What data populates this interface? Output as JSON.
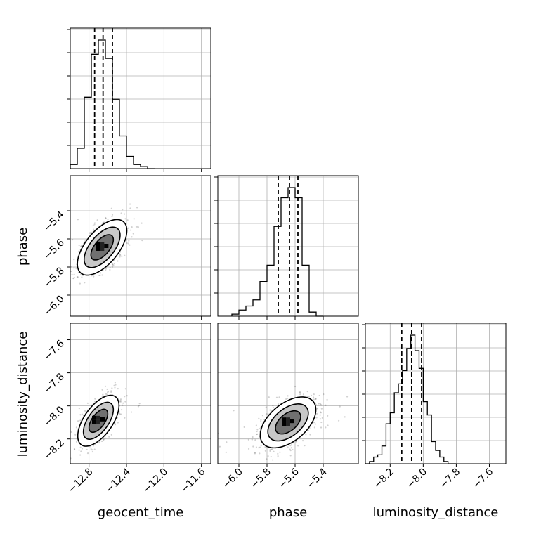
{
  "chart_data": {
    "type": "corner",
    "parameters": [
      "geocent_time",
      "phase",
      "luminosity_distance"
    ],
    "axis_labels": {
      "geocent_time": "geocent_time",
      "phase": "phase",
      "luminosity_distance": "luminosity_distance"
    },
    "ranges": {
      "geocent_time": [
        -13.0,
        -11.5
      ],
      "phase": [
        -6.15,
        -5.15
      ],
      "luminosity_distance": [
        -8.35,
        -7.5
      ]
    },
    "ticks": {
      "geocent_time": [
        {
          "v": -12.8,
          "label": "−12.8"
        },
        {
          "v": -12.4,
          "label": "−12.4"
        },
        {
          "v": -12.0,
          "label": "−12.0"
        },
        {
          "v": -11.6,
          "label": "−11.6"
        }
      ],
      "phase": [
        {
          "v": -6.0,
          "label": "−6.0"
        },
        {
          "v": -5.8,
          "label": "−5.8"
        },
        {
          "v": -5.6,
          "label": "−5.6"
        },
        {
          "v": -5.4,
          "label": "−5.4"
        }
      ],
      "luminosity_distance": [
        {
          "v": -8.2,
          "label": "−8.2"
        },
        {
          "v": -8.0,
          "label": "−8.0"
        },
        {
          "v": -7.8,
          "label": "−7.8"
        },
        {
          "v": -7.6,
          "label": "−7.6"
        }
      ]
    },
    "grid": true,
    "histograms": [
      {
        "param": "geocent_time",
        "bin_edges": [
          -13.0,
          -12.925,
          -12.85,
          -12.775,
          -12.7,
          -12.625,
          -12.55,
          -12.475,
          -12.4,
          -12.325,
          -12.25,
          -12.175,
          -12.1
        ],
        "counts": [
          2,
          10,
          35,
          56,
          63,
          54,
          34,
          16,
          6,
          2,
          1,
          0
        ],
        "quantiles": [
          -12.74,
          -12.65,
          -12.55
        ]
      },
      {
        "param": "phase",
        "bin_edges": [
          -6.05,
          -6.0,
          -5.95,
          -5.9,
          -5.85,
          -5.8,
          -5.75,
          -5.7,
          -5.65,
          -5.6,
          -5.55,
          -5.5,
          -5.45,
          -5.4
        ],
        "counts": [
          1,
          3,
          5,
          8,
          17,
          25,
          44,
          58,
          63,
          58,
          25,
          2,
          0
        ],
        "quantiles": [
          -5.72,
          -5.64,
          -5.58
        ]
      },
      {
        "param": "luminosity_distance",
        "bin_edges": [
          -8.35,
          -8.325,
          -8.3,
          -8.275,
          -8.25,
          -8.225,
          -8.2,
          -8.175,
          -8.15,
          -8.125,
          -8.1,
          -8.075,
          -8.05,
          -8.025,
          -8.0,
          -7.975,
          -7.95,
          -7.925,
          -7.9,
          -7.875,
          -7.85,
          -7.825,
          -7.8
        ],
        "counts": [
          0,
          1,
          3,
          4,
          8,
          18,
          23,
          32,
          36,
          42,
          52,
          58,
          51,
          43,
          28,
          22,
          10,
          6,
          3,
          1,
          0,
          0
        ],
        "quantiles": [
          -8.13,
          -8.07,
          -8.01
        ]
      }
    ],
    "scatter_2d": [
      {
        "x": "geocent_time",
        "y": "phase",
        "center": [
          -12.66,
          -5.66
        ],
        "sigma": [
          0.12,
          0.09
        ],
        "corr": 0.6,
        "n_points": 1100
      },
      {
        "x": "geocent_time",
        "y": "luminosity_distance",
        "center": [
          -12.7,
          -8.09
        ],
        "sigma": [
          0.1,
          0.07
        ],
        "corr": 0.6,
        "n_points": 1100
      },
      {
        "x": "phase",
        "y": "luminosity_distance",
        "center": [
          -5.65,
          -8.1
        ],
        "sigma": [
          0.09,
          0.07
        ],
        "corr": 0.5,
        "n_points": 1100
      }
    ],
    "contour_levels_sigma": [
      1.0,
      1.6,
      2.2
    ]
  }
}
